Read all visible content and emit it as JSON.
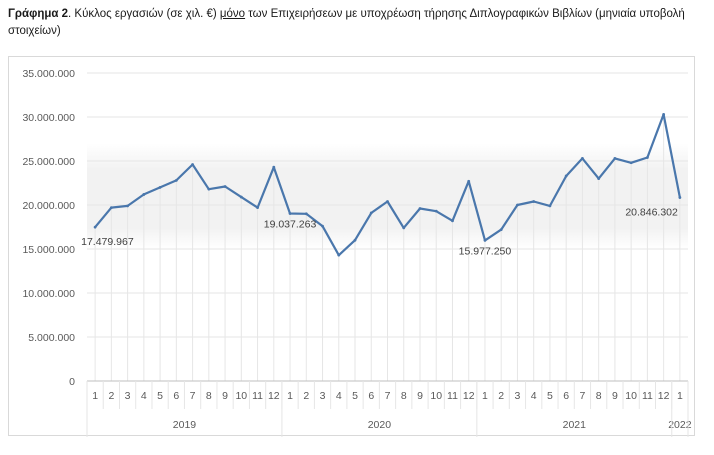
{
  "caption": {
    "lead": "Γράφημα 2",
    "part1": ". Κύκλος εργασιών (σε χιλ. €) ",
    "emphasis": "μόνο",
    "part2": " των Επιχειρήσεων με υποχρέωση τήρησης Διπλογραφικών Βιβλίων (μηνιαία υποβολή στοιχείων)"
  },
  "colors": {
    "line": "#4a77ac",
    "gridline": "#e6e6e6",
    "axis": "#bfbfbf",
    "band": "#f2f2f2"
  },
  "chart_data": {
    "type": "line",
    "title": "",
    "xlabel": "",
    "ylabel": "",
    "ylim": [
      0,
      35000000
    ],
    "yticks": [
      0,
      5000000,
      10000000,
      15000000,
      20000000,
      25000000,
      30000000,
      35000000
    ],
    "ytick_labels": [
      "0",
      "5.000.000",
      "10.000.000",
      "15.000.000",
      "20.000.000",
      "25.000.000",
      "30.000.000",
      "35.000.000"
    ],
    "grid": true,
    "legend": "none",
    "categories": [
      "1",
      "2",
      "3",
      "4",
      "5",
      "6",
      "7",
      "8",
      "9",
      "10",
      "11",
      "12",
      "1",
      "2",
      "3",
      "4",
      "5",
      "6",
      "7",
      "8",
      "9",
      "10",
      "11",
      "12",
      "1",
      "2",
      "3",
      "4",
      "5",
      "6",
      "7",
      "8",
      "9",
      "10",
      "11",
      "12",
      "1"
    ],
    "year_groups": [
      {
        "label": "2019",
        "count": 12
      },
      {
        "label": "2020",
        "count": 12
      },
      {
        "label": "2021",
        "count": 12
      },
      {
        "label": "2022",
        "count": 1
      }
    ],
    "series": [
      {
        "values": [
          17479967,
          19700000,
          19900000,
          21200000,
          22000000,
          22800000,
          24600000,
          21800000,
          22100000,
          20900000,
          19700000,
          24300000,
          19037263,
          19000000,
          17600000,
          14300000,
          16000000,
          19100000,
          20400000,
          17400000,
          19600000,
          19300000,
          18200000,
          22700000,
          15977250,
          17200000,
          20000000,
          20400000,
          19900000,
          23300000,
          25300000,
          23000000,
          25300000,
          24800000,
          25400000,
          30300000,
          20846302
        ]
      }
    ],
    "annotations": [
      {
        "index": 0,
        "text": "17.479.967"
      },
      {
        "index": 12,
        "text": "19.037.263"
      },
      {
        "index": 24,
        "text": "15.977.250"
      },
      {
        "index": 36,
        "text": "20.846.302"
      }
    ]
  }
}
